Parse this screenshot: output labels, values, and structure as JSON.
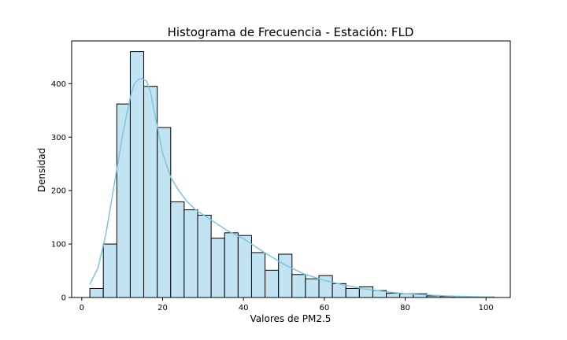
{
  "chart_data": {
    "type": "histogram",
    "title": "Histograma de Frecuencia - Estación: FLD",
    "xlabel": "Valores de PM2.5",
    "ylabel": "Densidad",
    "xlim": [
      -2.5,
      106
    ],
    "ylim": [
      0,
      480
    ],
    "xticks": [
      0,
      20,
      40,
      60,
      80,
      100
    ],
    "yticks": [
      0,
      100,
      200,
      300,
      400
    ],
    "bin_start": 2,
    "bin_width": 3.33,
    "bins": [
      {
        "x0": 2.0,
        "x1": 5.33,
        "value": 17
      },
      {
        "x0": 5.33,
        "x1": 8.67,
        "value": 100
      },
      {
        "x0": 8.67,
        "x1": 12.0,
        "value": 362
      },
      {
        "x0": 12.0,
        "x1": 15.33,
        "value": 460
      },
      {
        "x0": 15.33,
        "x1": 18.67,
        "value": 395
      },
      {
        "x0": 18.67,
        "x1": 22.0,
        "value": 318
      },
      {
        "x0": 22.0,
        "x1": 25.33,
        "value": 179
      },
      {
        "x0": 25.33,
        "x1": 28.67,
        "value": 164
      },
      {
        "x0": 28.67,
        "x1": 32.0,
        "value": 154
      },
      {
        "x0": 32.0,
        "x1": 35.33,
        "value": 111
      },
      {
        "x0": 35.33,
        "x1": 38.67,
        "value": 121
      },
      {
        "x0": 38.67,
        "x1": 42.0,
        "value": 116
      },
      {
        "x0": 42.0,
        "x1": 45.33,
        "value": 84
      },
      {
        "x0": 45.33,
        "x1": 48.67,
        "value": 51
      },
      {
        "x0": 48.67,
        "x1": 52.0,
        "value": 81
      },
      {
        "x0": 52.0,
        "x1": 55.33,
        "value": 43
      },
      {
        "x0": 55.33,
        "x1": 58.67,
        "value": 35
      },
      {
        "x0": 58.67,
        "x1": 62.0,
        "value": 41
      },
      {
        "x0": 62.0,
        "x1": 65.33,
        "value": 26
      },
      {
        "x0": 65.33,
        "x1": 68.67,
        "value": 17
      },
      {
        "x0": 68.67,
        "x1": 72.0,
        "value": 20
      },
      {
        "x0": 72.0,
        "x1": 75.33,
        "value": 13
      },
      {
        "x0": 75.33,
        "x1": 78.67,
        "value": 8
      },
      {
        "x0": 78.67,
        "x1": 82.0,
        "value": 7
      },
      {
        "x0": 82.0,
        "x1": 85.33,
        "value": 7
      },
      {
        "x0": 85.33,
        "x1": 88.67,
        "value": 3
      },
      {
        "x0": 88.67,
        "x1": 92.0,
        "value": 2
      },
      {
        "x0": 92.0,
        "x1": 95.33,
        "value": 2
      },
      {
        "x0": 95.33,
        "x1": 98.67,
        "value": 1
      },
      {
        "x0": 98.67,
        "x1": 102.0,
        "value": 1
      }
    ],
    "kde": {
      "x": [
        2,
        4,
        6,
        8,
        10,
        12,
        13,
        14,
        15,
        16,
        17,
        18,
        20,
        22,
        24,
        26,
        28,
        30,
        33,
        36,
        40,
        45,
        50,
        55,
        60,
        65,
        70,
        75,
        80,
        85,
        90,
        95,
        100,
        102
      ],
      "y": [
        25,
        55,
        120,
        210,
        300,
        375,
        400,
        408,
        410,
        405,
        385,
        345,
        270,
        225,
        200,
        180,
        165,
        155,
        140,
        125,
        110,
        85,
        62,
        44,
        32,
        23,
        16,
        11,
        7,
        5,
        3,
        2,
        1,
        1
      ]
    },
    "colors": {
      "bar_fill": "#c2e3f2",
      "bar_edge": "#000000",
      "kde_line": "#79c6de"
    },
    "grid": false,
    "legend": "none"
  }
}
